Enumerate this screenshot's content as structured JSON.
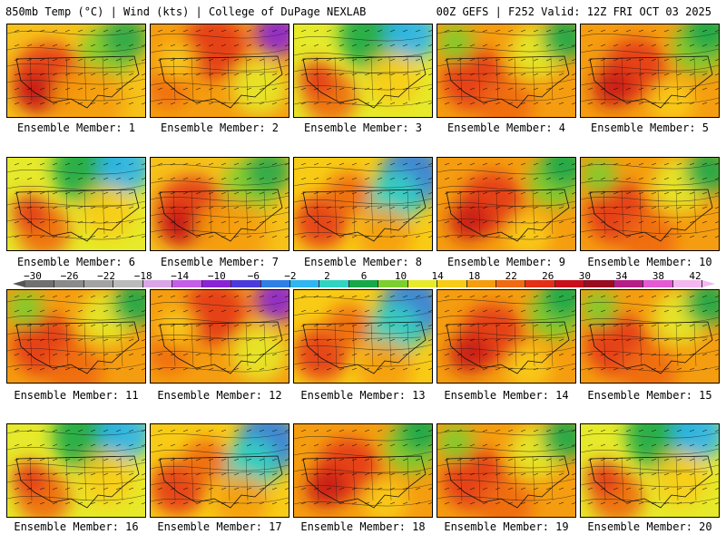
{
  "header": {
    "left": "850mb Temp (°C) | Wind (kts) | College of DuPage NEXLAB",
    "right": "00Z GEFS | F252 Valid: 12Z FRI OCT 03 2025"
  },
  "colorbar": {
    "ticks": [
      "-30",
      "-26",
      "-22",
      "-18",
      "-14",
      "-10",
      "-6",
      "-2",
      "2",
      "6",
      "10",
      "14",
      "18",
      "22",
      "26",
      "30",
      "34",
      "38",
      "42"
    ],
    "colors": [
      "#707070",
      "#8a8a8a",
      "#a2a2a2",
      "#bbbbbb",
      "#d9a6e8",
      "#c35ee8",
      "#8a22d6",
      "#4b3bdc",
      "#2f7fe6",
      "#2fb5f0",
      "#32d3c0",
      "#18a84a",
      "#7ccf2e",
      "#e6ea2a",
      "#f8cc16",
      "#f59d10",
      "#ef6a12",
      "#e33016",
      "#c8101a",
      "#9a0c20",
      "#b51e86",
      "#e35ad2",
      "#f3b8f0"
    ]
  },
  "panels": [
    {
      "label": "Ensemble Member: 1",
      "theme": "warm-west"
    },
    {
      "label": "Ensemble Member: 2",
      "theme": "warm-north"
    },
    {
      "label": "Ensemble Member: 3",
      "theme": "cool-north"
    },
    {
      "label": "Ensemble Member: 4",
      "theme": "warm-low"
    },
    {
      "label": "Ensemble Member: 5",
      "theme": "warm-center"
    },
    {
      "label": "Ensemble Member: 6",
      "theme": "cool-north"
    },
    {
      "label": "Ensemble Member: 7",
      "theme": "warm-west"
    },
    {
      "label": "Ensemble Member: 8",
      "theme": "cool-ne"
    },
    {
      "label": "Ensemble Member: 9",
      "theme": "warm-center"
    },
    {
      "label": "Ensemble Member: 10",
      "theme": "warm-low"
    },
    {
      "label": "Ensemble Member: 11",
      "theme": "warm-low"
    },
    {
      "label": "Ensemble Member: 12",
      "theme": "warm-north"
    },
    {
      "label": "Ensemble Member: 13",
      "theme": "cool-ne"
    },
    {
      "label": "Ensemble Member: 14",
      "theme": "warm-center"
    },
    {
      "label": "Ensemble Member: 15",
      "theme": "warm-low"
    },
    {
      "label": "Ensemble Member: 16",
      "theme": "cool-north"
    },
    {
      "label": "Ensemble Member: 17",
      "theme": "cool-ne"
    },
    {
      "label": "Ensemble Member: 18",
      "theme": "warm-center"
    },
    {
      "label": "Ensemble Member: 19",
      "theme": "warm-low"
    },
    {
      "label": "Ensemble Member: 20",
      "theme": "cool-north"
    }
  ]
}
